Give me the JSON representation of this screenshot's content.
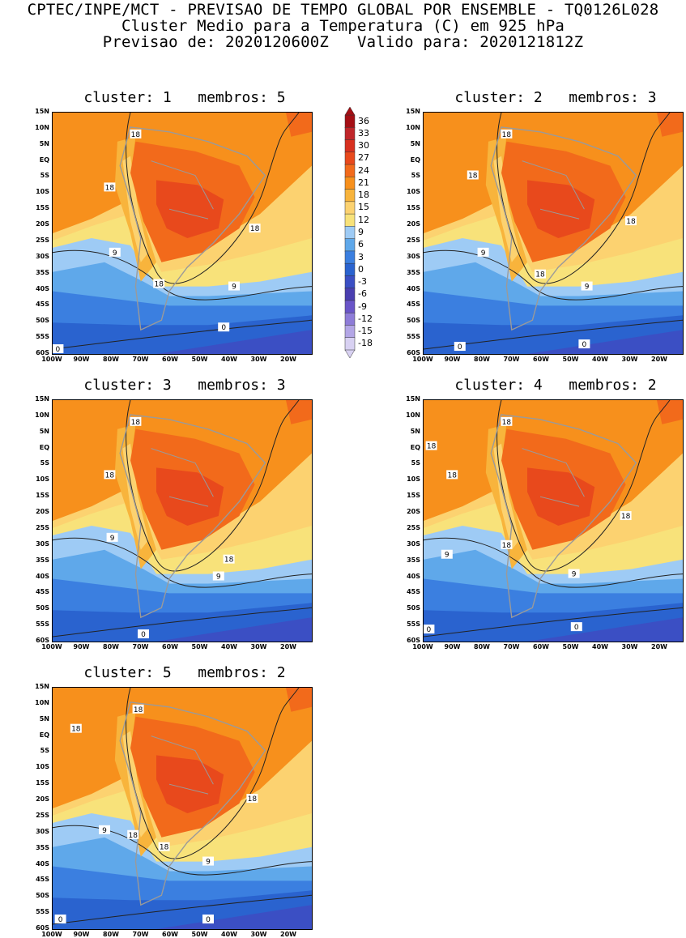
{
  "header": {
    "line1": "CPTEC/INPE/MCT - PREVISAO DE TEMPO GLOBAL POR ENSEMBLE - TQ0126L028",
    "line2": "Cluster Medio para a Temperatura (C) em 925 hPa",
    "line3": "Previsao de: 2020120600Z   Valido para: 2020121812Z"
  },
  "lat_labels": [
    "15N",
    "10N",
    "5N",
    "EQ",
    "5S",
    "10S",
    "15S",
    "20S",
    "25S",
    "30S",
    "35S",
    "40S",
    "45S",
    "50S",
    "55S",
    "60S"
  ],
  "lon_labels": [
    "100W",
    "90W",
    "80W",
    "70W",
    "60W",
    "50W",
    "40W",
    "30W",
    "20W"
  ],
  "panels": [
    {
      "title": "cluster: 1   membros: 5",
      "contour_labels": [
        "18",
        "18",
        "18",
        "9",
        "18",
        "9",
        "0",
        "0"
      ]
    },
    {
      "title": "cluster: 2   membros: 3",
      "contour_labels": [
        "18",
        "18",
        "18",
        "9",
        "18",
        "9",
        "0",
        "0"
      ]
    },
    {
      "title": "cluster: 3   membros: 3",
      "contour_labels": [
        "18",
        "18",
        "9",
        "18",
        "9",
        "0"
      ]
    },
    {
      "title": "cluster: 4   membros: 2",
      "contour_labels": [
        "18",
        "18",
        "18",
        "18",
        "18",
        "9",
        "9",
        "0",
        "0"
      ]
    },
    {
      "title": "cluster: 5   membros: 2",
      "contour_labels": [
        "18",
        "18",
        "18",
        "9",
        "18",
        "18",
        "9",
        "0",
        "0"
      ]
    }
  ],
  "colorbar": {
    "labels": [
      "36",
      "33",
      "30",
      "27",
      "24",
      "21",
      "18",
      "15",
      "12",
      "9",
      "6",
      "3",
      "0",
      "-3",
      "-6",
      "-9",
      "-12",
      "-15",
      "-18"
    ],
    "colors": [
      "#a50f15",
      "#c0262a",
      "#d7301f",
      "#e8491c",
      "#f26a1b",
      "#f7901c",
      "#f8b43c",
      "#fcd270",
      "#f8e27a",
      "#9ecbf5",
      "#5fa8ea",
      "#3b7fe0",
      "#2a63cf",
      "#3b4fc4",
      "#4a3fb0",
      "#6a55c8",
      "#8e7cd8",
      "#b3a6e6",
      "#d8d1f2"
    ]
  }
}
